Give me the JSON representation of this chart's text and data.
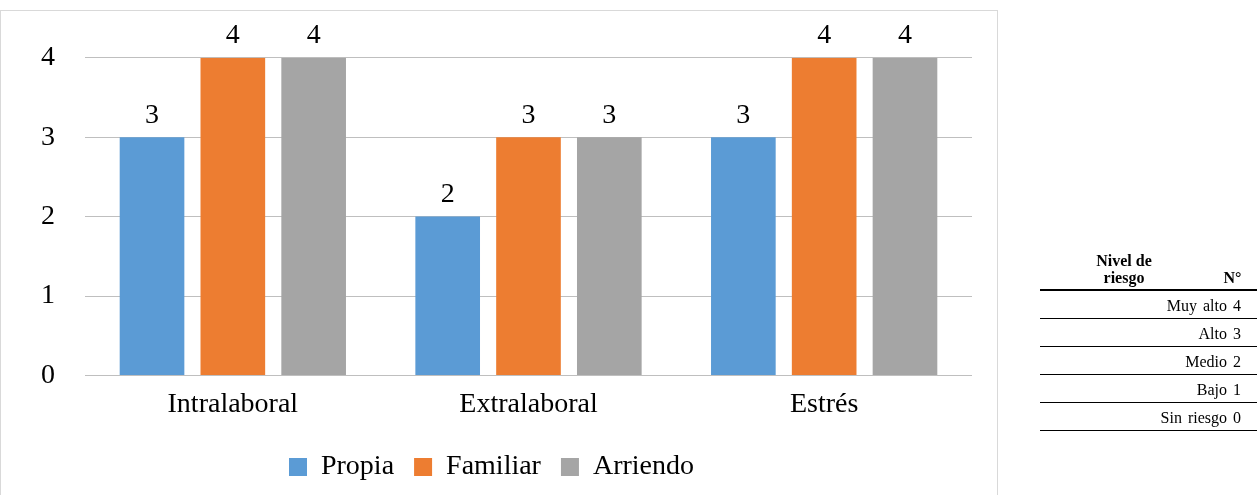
{
  "chart_data": [
    {
      "type": "bar",
      "categories": [
        "Intralaboral",
        "Extralaboral",
        "Estrés"
      ],
      "series": [
        {
          "name": "Propia",
          "color": "#5b9bd5",
          "values": [
            3,
            2,
            3
          ]
        },
        {
          "name": "Familiar",
          "color": "#ed7d31",
          "values": [
            4,
            3,
            4
          ]
        },
        {
          "name": "Arriendo",
          "color": "#a5a5a5",
          "values": [
            4,
            3,
            4
          ]
        }
      ],
      "ylim": [
        0,
        4
      ],
      "yticks": [
        0,
        1,
        2,
        3,
        4
      ],
      "grid": "y",
      "legend": "bottom",
      "data_labels": true
    },
    {
      "type": "other",
      "annotations": [
        "Nivel de riesgo",
        "N°",
        "Muy alto 4",
        "Alto 3",
        "Medio 2",
        "Bajo 1",
        "Sin riesgo 0"
      ]
    }
  ]
}
